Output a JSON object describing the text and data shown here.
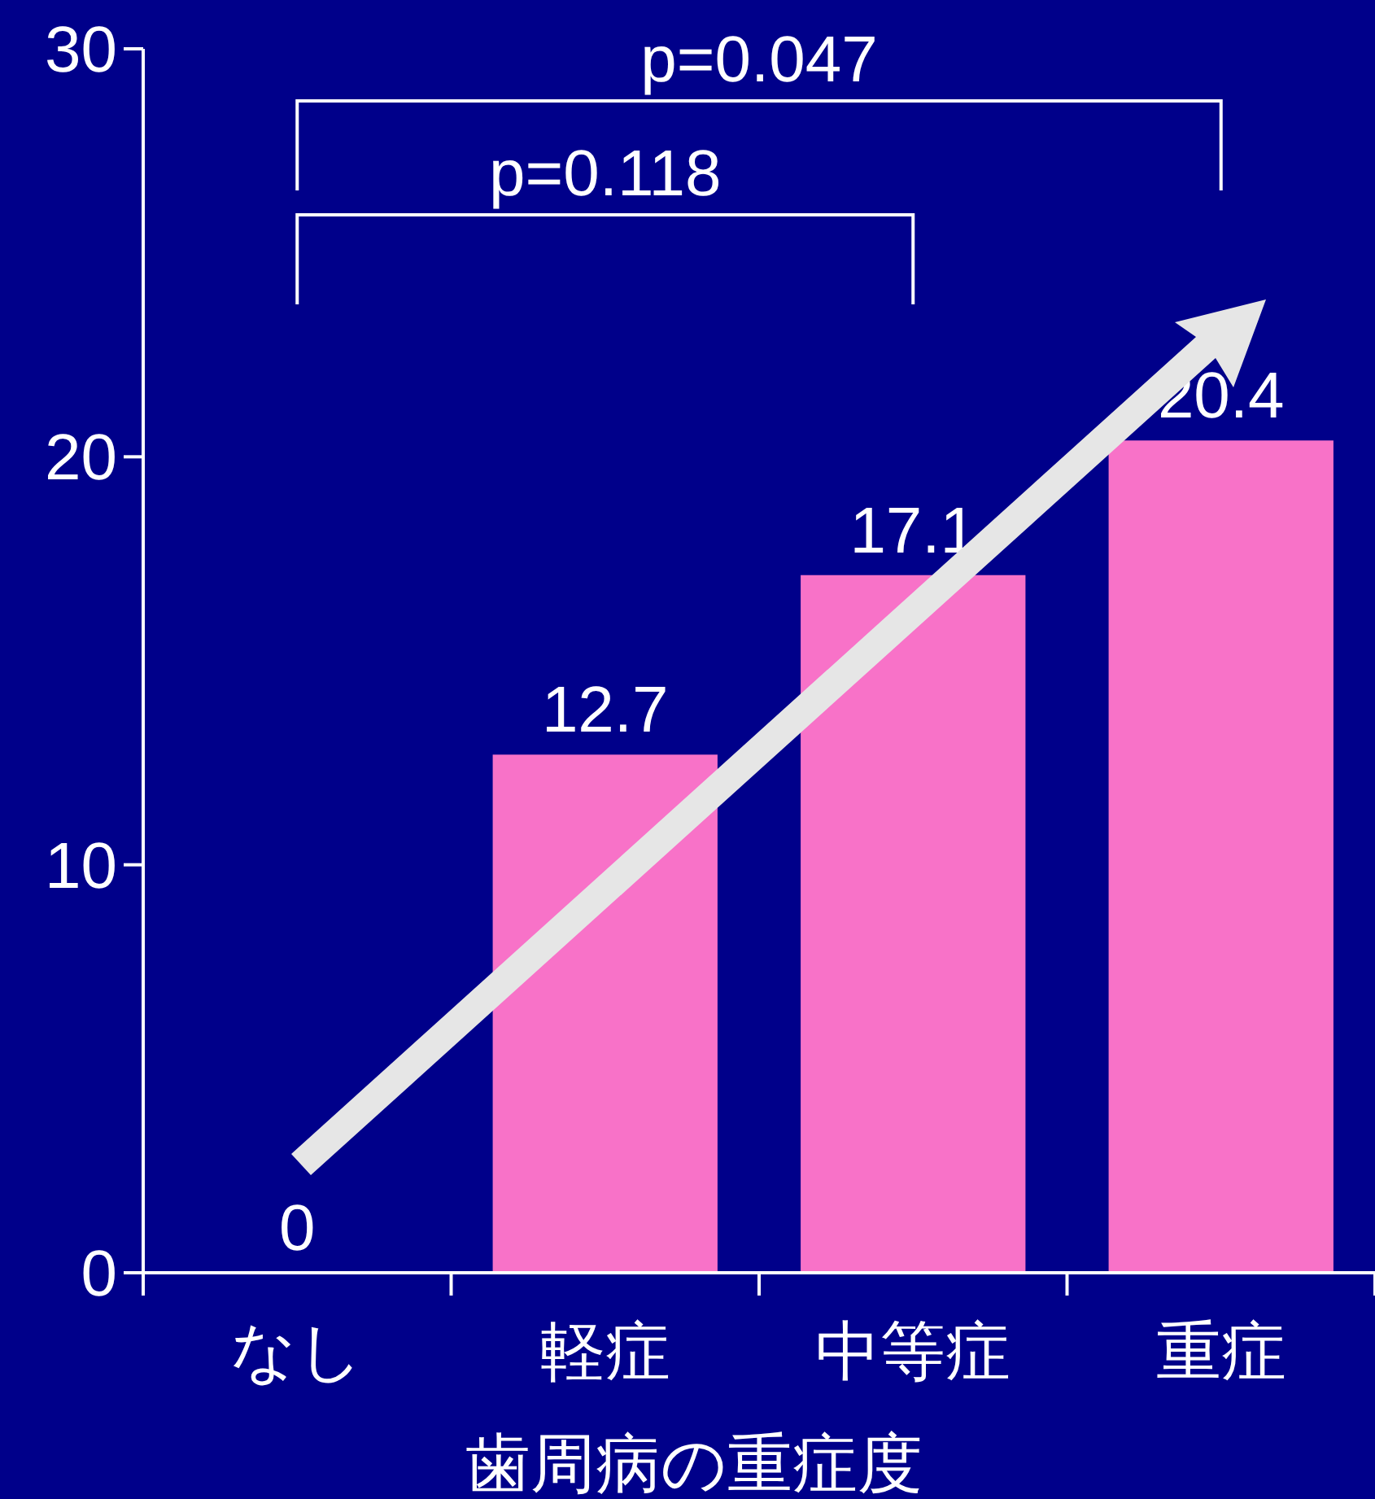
{
  "chart_data": {
    "type": "bar",
    "xlabel": "歯周病の重症度",
    "categories": [
      "なし",
      "軽症",
      "中等症",
      "重症"
    ],
    "values": [
      0,
      12.7,
      17.1,
      20.4
    ],
    "color": "#f872c8",
    "ylim": [
      0,
      30
    ],
    "yticks": [
      0,
      10,
      20,
      30
    ],
    "data_labels": true,
    "grid": false,
    "annotations": [
      "p=0.047",
      "p=0.118"
    ]
  }
}
